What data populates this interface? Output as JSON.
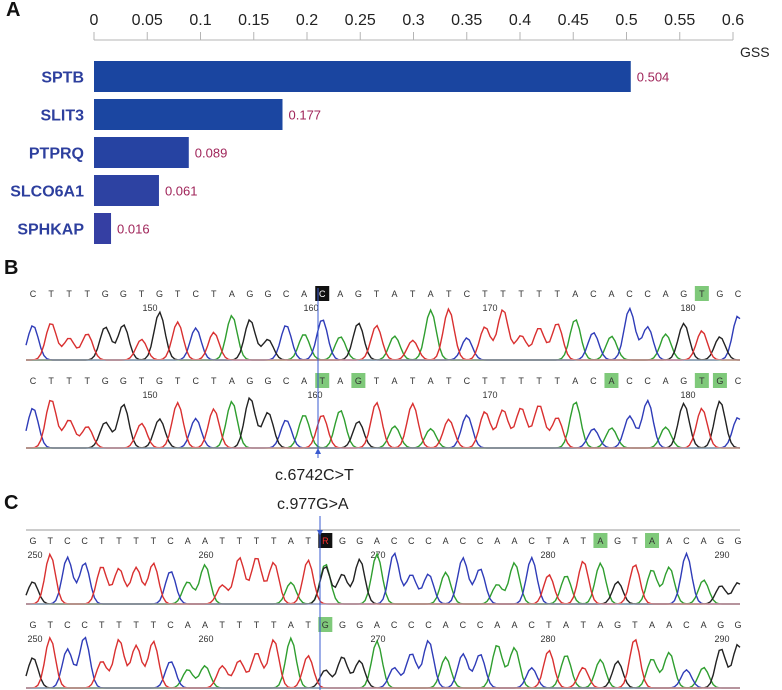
{
  "panels": {
    "a": "A",
    "b": "B",
    "c": "C"
  },
  "chart_data": {
    "type": "bar",
    "orientation": "horizontal",
    "categories": [
      "SPTB",
      "SLIT3",
      "PTPRQ",
      "SLCO6A1",
      "SPHKAP"
    ],
    "values": [
      0.504,
      0.177,
      0.089,
      0.061,
      0.016
    ],
    "value_labels": [
      "0.504",
      "0.177",
      "0.089",
      "0.061",
      "0.016"
    ],
    "xlabel": "GSS",
    "xlim": [
      0,
      0.6
    ],
    "xticks": [
      "0",
      "0.05",
      "0.1",
      "0.15",
      "0.2",
      "0.25",
      "0.3",
      "0.35",
      "0.4",
      "0.45",
      "0.5",
      "0.55",
      "0.6"
    ],
    "bar_colors": [
      "#1a45a0",
      "#1b46a1",
      "#2643a2",
      "#2d42a2",
      "#353fa3"
    ],
    "label_color": "#2d3f9e",
    "value_color": "#a0255a",
    "axis_position": "top",
    "grid": false
  },
  "traces": {
    "colors": {
      "A": "#2f9e2f",
      "C": "#2f3cb8",
      "G": "#222222",
      "T": "#d93030"
    },
    "b": {
      "seq_top": "CTTTGGTGTCTAGGCACAGTATATCTTTTTACACCAGTGC",
      "seq_bottom": "CTTTGGTGTCTAGGCATAGTATATCTTTTTACACCAGTGC",
      "pos_top": [
        "150",
        "160",
        "170",
        "180"
      ],
      "pos_bottom": [
        "150",
        "160",
        "170",
        "180"
      ],
      "mutation": "c.6742C>T"
    },
    "c": {
      "seq_top": "GTCCTTTTCAATTTTATRGGACCCACCAACTATAGTAACAGG",
      "seq_bottom": "GTCCTTTTCAATTTTATGGGACCCACCAACTATAGTAACAGG",
      "pos_top": [
        "250",
        "260",
        "270",
        "280",
        "290"
      ],
      "pos_bottom": [
        "250",
        "260",
        "270",
        "280",
        "290"
      ],
      "mutation": "c.977G>A"
    }
  }
}
